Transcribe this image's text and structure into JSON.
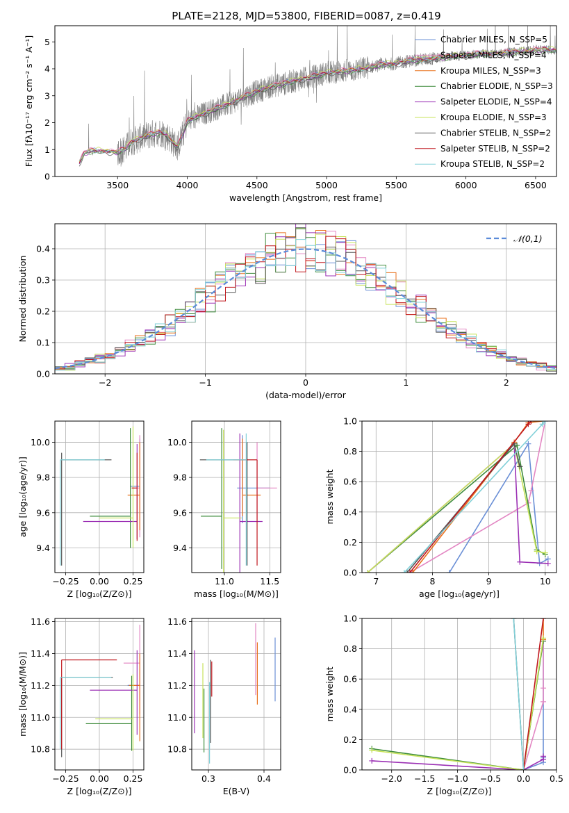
{
  "figure_title": "PLATE=2128, MJD=53800, FIBERID=0087, z=0.419",
  "colors": {
    "Chabrier MILES": "#6a8fd6",
    "Salpeter MILES": "#e387c3",
    "Kroupa MILES": "#e8721c",
    "Chabrier ELODIE": "#3f8c3c",
    "Salpeter ELODIE": "#9b30b4",
    "Kroupa ELODIE": "#c7e35a",
    "Chabrier STELIB": "#555555",
    "Salpeter STELIB": "#c0171d",
    "Kroupa STELIB": "#80d0d8",
    "normal_curve": "#5b8bd9",
    "grid": "#b0b0b0"
  },
  "chart_data": [
    {
      "id": "spectrum",
      "type": "line",
      "xlabel": "wavelength [Angstrom, rest frame]",
      "ylabel": "Flux [fλ10⁻¹⁷ erg cm⁻² s⁻¹ A⁻¹]",
      "xlim": [
        3050,
        6650
      ],
      "ylim": [
        0,
        5.6
      ],
      "xticks": [
        3500,
        4000,
        4500,
        5000,
        5500,
        6000,
        6500
      ],
      "yticks": [
        0,
        1,
        2,
        3,
        4,
        5
      ],
      "grid": false,
      "legend_loc": "upper-right",
      "data_range": [
        3225,
        6650
      ],
      "model_knots": {
        "x": [
          3225,
          3260,
          3300,
          3400,
          3500,
          3560,
          3600,
          3700,
          3800,
          3850,
          3930,
          3970,
          4000,
          4100,
          4200,
          4300,
          4400,
          4500,
          4600,
          4700,
          4800,
          4900,
          5000,
          5100,
          5200,
          5300,
          5400,
          5500,
          5600,
          5700,
          5800,
          5900,
          6000,
          6100,
          6200,
          6300,
          6400,
          6500,
          6650
        ],
        "y": [
          0.5,
          0.85,
          0.95,
          0.95,
          0.9,
          1.05,
          1.3,
          1.5,
          1.65,
          1.55,
          1.1,
          1.6,
          2.05,
          2.3,
          2.5,
          2.7,
          2.95,
          3.15,
          3.35,
          3.45,
          3.6,
          3.7,
          3.85,
          3.9,
          3.95,
          4.05,
          4.15,
          4.2,
          4.3,
          4.35,
          4.4,
          4.45,
          4.5,
          4.55,
          4.55,
          4.6,
          4.65,
          4.7,
          4.7
        ]
      },
      "series": [
        {
          "name": "Chabrier MILES, N_SSP=5",
          "library": "Chabrier MILES",
          "offset": 0.03
        },
        {
          "name": "Salpeter MILES, N_SSP=4",
          "library": "Salpeter MILES",
          "offset": 0.06
        },
        {
          "name": "Kroupa MILES, N_SSP=3",
          "library": "Kroupa MILES",
          "offset": 0.0
        },
        {
          "name": "Chabrier ELODIE, N_SSP=3",
          "library": "Chabrier ELODIE",
          "offset": -0.04
        },
        {
          "name": "Salpeter ELODIE, N_SSP=4",
          "library": "Salpeter ELODIE",
          "offset": -0.02
        },
        {
          "name": "Kroupa ELODIE, N_SSP=3",
          "library": "Kroupa ELODIE",
          "offset": 0.05
        },
        {
          "name": "Chabrier STELIB, N_SSP=2",
          "library": "Chabrier STELIB",
          "offset": -0.06
        },
        {
          "name": "Salpeter STELIB, N_SSP=2",
          "library": "Salpeter STELIB",
          "offset": 0.02
        },
        {
          "name": "Kroupa STELIB, N_SSP=2",
          "library": "Kroupa STELIB",
          "offset": -0.01
        }
      ]
    },
    {
      "id": "residuals",
      "type": "line",
      "xlabel": "(data-model)/error",
      "ylabel": "Normed distribution",
      "xlim": [
        -2.5,
        2.5
      ],
      "ylim": [
        0,
        0.48
      ],
      "xticks": [
        -2,
        -1,
        0,
        1,
        2
      ],
      "yticks": [
        0.0,
        0.1,
        0.2,
        0.3,
        0.4
      ],
      "grid": true,
      "legend_loc": "upper-right",
      "normal_label": "𝒩(0,1)",
      "bin_width": 0.1
    },
    {
      "id": "age_vs_Z",
      "type": "scatter",
      "xlabel": "Z [log₁₀(Z/Z⊙)]",
      "ylabel": "age [log₁₀(age/yr)]",
      "xlim": [
        -0.33,
        0.33
      ],
      "ylim": [
        9.26,
        10.12
      ],
      "xticks": [
        -0.25,
        0.0,
        0.25
      ],
      "yticks": [
        9.4,
        9.6,
        9.8,
        10.0
      ],
      "grid": true,
      "errorbars": [
        {
          "library": "Chabrier MILES",
          "x": 0.3,
          "xerr": [
            0.07,
            0.0
          ],
          "y": 9.75,
          "yerr": [
            0.2,
            0.27
          ]
        },
        {
          "library": "Salpeter MILES",
          "x": 0.3,
          "xerr": [
            0.06,
            0.0
          ],
          "y": 9.74,
          "yerr": [
            0.28,
            0.3
          ]
        },
        {
          "library": "Kroupa MILES",
          "x": 0.3,
          "xerr": [
            0.09,
            0.0
          ],
          "y": 9.7,
          "yerr": [
            0.2,
            0.3
          ]
        },
        {
          "library": "Chabrier ELODIE",
          "x": 0.23,
          "xerr": [
            0.3,
            0.0
          ],
          "y": 9.58,
          "yerr": [
            0.18,
            0.5
          ]
        },
        {
          "library": "Salpeter ELODIE",
          "x": 0.28,
          "xerr": [
            0.4,
            0.0
          ],
          "y": 9.55,
          "yerr": [
            0.1,
            0.44
          ]
        },
        {
          "library": "Kroupa ELODIE",
          "x": 0.25,
          "xerr": [
            0.25,
            0.0
          ],
          "y": 9.57,
          "yerr": [
            0.17,
            0.52
          ]
        },
        {
          "library": "Chabrier STELIB",
          "x": -0.28,
          "xerr": [
            0.0,
            0.37
          ],
          "y": 9.9,
          "yerr": [
            0.6,
            0.04
          ]
        },
        {
          "library": "Salpeter STELIB",
          "x": 0.28,
          "xerr": [
            0.04,
            0.0
          ],
          "y": 9.74,
          "yerr": [
            0.3,
            0.2
          ]
        },
        {
          "library": "Kroupa STELIB",
          "x": -0.29,
          "xerr": [
            0.0,
            0.33
          ],
          "y": 9.9,
          "yerr": [
            0.6,
            0.0
          ]
        }
      ]
    },
    {
      "id": "age_vs_mass",
      "type": "scatter",
      "xlabel": "mass [log₁₀(M/M⊙)]",
      "ylabel": "",
      "xlim": [
        10.64,
        11.62
      ],
      "ylim": [
        9.26,
        10.12
      ],
      "xticks": [
        11.0,
        11.5
      ],
      "yticks": [
        9.4,
        9.6,
        9.8,
        10.0
      ],
      "grid": true,
      "errorbars": [
        {
          "library": "Chabrier MILES",
          "x": 11.2,
          "xerr": [
            0.06,
            0.3
          ],
          "y": 9.74,
          "yerr": [
            0.2,
            0.3
          ]
        },
        {
          "library": "Salpeter MILES",
          "x": 11.36,
          "xerr": [
            0.0,
            0.22
          ],
          "y": 9.74,
          "yerr": [
            0.18,
            0.26
          ]
        },
        {
          "library": "Kroupa MILES",
          "x": 11.2,
          "xerr": [
            0.0,
            0.2
          ],
          "y": 9.7,
          "yerr": [
            0.12,
            0.32
          ]
        },
        {
          "library": "Chabrier ELODIE",
          "x": 10.97,
          "xerr": [
            0.23,
            0.0
          ],
          "y": 9.58,
          "yerr": [
            0.3,
            0.5
          ]
        },
        {
          "library": "Salpeter ELODIE",
          "x": 11.17,
          "xerr": [
            0.0,
            0.25
          ],
          "y": 9.55,
          "yerr": [
            0.4,
            0.5
          ]
        },
        {
          "library": "Kroupa ELODIE",
          "x": 10.99,
          "xerr": [
            0.0,
            0.2
          ],
          "y": 9.57,
          "yerr": [
            0.4,
            0.5
          ]
        },
        {
          "library": "Chabrier STELIB",
          "x": 11.25,
          "xerr": [
            0.52,
            0.0
          ],
          "y": 9.9,
          "yerr": [
            0.6,
            0.1
          ]
        },
        {
          "library": "Salpeter STELIB",
          "x": 11.36,
          "xerr": [
            0.26,
            0.0
          ],
          "y": 9.9,
          "yerr": [
            0.6,
            0.0
          ]
        },
        {
          "library": "Kroupa STELIB",
          "x": 11.24,
          "xerr": [
            0.44,
            0.0
          ],
          "y": 9.9,
          "yerr": [
            0.6,
            0.15
          ]
        }
      ]
    },
    {
      "id": "mass_weight_vs_age",
      "type": "line",
      "xlabel": "age  [log₁₀(age/yr)]",
      "ylabel": "mass weight",
      "xlim": [
        6.75,
        10.2
      ],
      "ylim": [
        0,
        1.0
      ],
      "xticks": [
        7,
        8,
        9,
        10
      ],
      "yticks": [
        0.0,
        0.2,
        0.4,
        0.6,
        0.8,
        1.0
      ],
      "grid": true,
      "series": [
        {
          "library": "Chabrier MILES",
          "x": [
            8.3,
            9.7,
            9.9,
            10.05
          ],
          "y": [
            0.0,
            0.85,
            0.06,
            0.09
          ]
        },
        {
          "library": "Salpeter MILES",
          "x": [
            7.6,
            9.7,
            9.75,
            10.0
          ],
          "y": [
            0.0,
            0.46,
            0.54,
            1.0
          ]
        },
        {
          "library": "Kroupa MILES",
          "x": [
            7.65,
            9.45,
            9.7,
            9.95
          ],
          "y": [
            0.0,
            0.86,
            0.99,
            1.0
          ]
        },
        {
          "library": "Chabrier ELODIE",
          "x": [
            6.85,
            9.5,
            9.85,
            10.0
          ],
          "y": [
            0.0,
            0.84,
            0.15,
            0.12
          ]
        },
        {
          "library": "Salpeter ELODIE",
          "x": [
            6.85,
            9.45,
            9.55,
            10.05
          ],
          "y": [
            0.0,
            0.85,
            0.07,
            0.06
          ]
        },
        {
          "library": "Kroupa ELODIE",
          "x": [
            6.85,
            9.45,
            9.85,
            10.0
          ],
          "y": [
            0.0,
            0.85,
            0.14,
            0.13
          ]
        },
        {
          "library": "Chabrier STELIB",
          "x": [
            7.55,
            9.45,
            9.55
          ],
          "y": [
            0.0,
            0.85,
            0.7
          ]
        },
        {
          "library": "Salpeter STELIB",
          "x": [
            7.6,
            9.7,
            9.75
          ],
          "y": [
            0.0,
            0.98,
            1.0
          ]
        },
        {
          "library": "Kroupa STELIB",
          "x": [
            7.5,
            9.95,
            10.0
          ],
          "y": [
            0.0,
            0.98,
            1.0
          ]
        }
      ]
    },
    {
      "id": "mass_vs_Z",
      "type": "scatter",
      "xlabel": "Z [log₁₀(Z/Z⊙)]",
      "ylabel": "mass [log₁₀(M/M⊙)]",
      "xlim": [
        -0.33,
        0.33
      ],
      "ylim": [
        10.67,
        11.62
      ],
      "xticks": [
        -0.25,
        0.0,
        0.25
      ],
      "yticks": [
        10.8,
        11.0,
        11.2,
        11.4,
        11.6
      ],
      "grid": true,
      "errorbars": [
        {
          "library": "Chabrier MILES",
          "x": 0.3,
          "xerr": [
            0.09,
            0.0
          ],
          "y": 11.2,
          "yerr": [
            0.1,
            0.1
          ]
        },
        {
          "library": "Salpeter MILES",
          "x": 0.3,
          "xerr": [
            0.12,
            0.0
          ],
          "y": 11.34,
          "yerr": [
            0.32,
            0.24
          ]
        },
        {
          "library": "Kroupa MILES",
          "x": 0.3,
          "xerr": [
            0.08,
            0.0
          ],
          "y": 11.2,
          "yerr": [
            0.35,
            0.2
          ]
        },
        {
          "library": "Chabrier ELODIE",
          "x": 0.24,
          "xerr": [
            0.34,
            0.0
          ],
          "y": 10.96,
          "yerr": [
            0.17,
            0.3
          ]
        },
        {
          "library": "Salpeter ELODIE",
          "x": 0.28,
          "xerr": [
            0.35,
            0.0
          ],
          "y": 11.17,
          "yerr": [
            0.28,
            0.25
          ]
        },
        {
          "library": "Kroupa ELODIE",
          "x": 0.25,
          "xerr": [
            0.28,
            0.0
          ],
          "y": 10.99,
          "yerr": [
            0.2,
            0.28
          ]
        },
        {
          "library": "Chabrier STELIB",
          "x": -0.28,
          "xerr": [
            0.0,
            0.38
          ],
          "y": 11.25,
          "yerr": [
            0.5,
            0.0
          ]
        },
        {
          "library": "Salpeter STELIB",
          "x": -0.28,
          "xerr": [
            0.0,
            0.41
          ],
          "y": 11.36,
          "yerr": [
            0.56,
            0.0
          ]
        },
        {
          "library": "Kroupa STELIB",
          "x": -0.29,
          "xerr": [
            0.0,
            0.38
          ],
          "y": 11.25,
          "yerr": [
            0.45,
            0.0
          ]
        }
      ]
    },
    {
      "id": "mass_vs_EBV",
      "type": "scatter",
      "xlabel": "E(B-V)",
      "ylabel": "",
      "xlim": [
        0.27,
        0.43
      ],
      "ylim": [
        10.67,
        11.62
      ],
      "xticks": [
        0.3,
        0.4
      ],
      "yticks": [
        10.8,
        11.0,
        11.2,
        11.4,
        11.6
      ],
      "grid": true,
      "errorbars": [
        {
          "library": "Chabrier MILES",
          "x": 0.42,
          "xerr": [
            0.0,
            0.0
          ],
          "y": 11.2,
          "yerr": [
            0.1,
            0.3
          ]
        },
        {
          "library": "Salpeter MILES",
          "x": 0.385,
          "xerr": [
            0.0,
            0.0
          ],
          "y": 11.34,
          "yerr": [
            0.2,
            0.25
          ]
        },
        {
          "library": "Kroupa MILES",
          "x": 0.388,
          "xerr": [
            0.0,
            0.0
          ],
          "y": 11.2,
          "yerr": [
            0.12,
            0.27
          ]
        },
        {
          "library": "Chabrier ELODIE",
          "x": 0.292,
          "xerr": [
            0.0,
            0.0
          ],
          "y": 10.96,
          "yerr": [
            0.18,
            0.22
          ]
        },
        {
          "library": "Salpeter ELODIE",
          "x": 0.275,
          "xerr": [
            0.0,
            0.0
          ],
          "y": 11.17,
          "yerr": [
            0.27,
            0.25
          ]
        },
        {
          "library": "Kroupa ELODIE",
          "x": 0.29,
          "xerr": [
            0.0,
            0.0
          ],
          "y": 10.99,
          "yerr": [
            0.12,
            0.35
          ]
        },
        {
          "library": "Chabrier STELIB",
          "x": 0.304,
          "xerr": [
            0.0,
            0.0
          ],
          "y": 11.04,
          "yerr": [
            0.2,
            0.32
          ]
        },
        {
          "library": "Salpeter STELIB",
          "x": 0.306,
          "xerr": [
            0.0,
            0.0
          ],
          "y": 11.2,
          "yerr": [
            0.07,
            0.15
          ]
        },
        {
          "library": "Kroupa STELIB",
          "x": 0.302,
          "xerr": [
            0.0,
            0.0
          ],
          "y": 11.04,
          "yerr": [
            0.33,
            0.18
          ]
        }
      ]
    },
    {
      "id": "mass_weight_vs_Z",
      "type": "line",
      "xlabel": "Z [log₁₀(Z/Z⊙)]",
      "ylabel": "mass weight",
      "xlim": [
        -2.45,
        0.5
      ],
      "ylim": [
        0,
        1.0
      ],
      "xticks": [
        -2.0,
        -1.5,
        -1.0,
        -0.5,
        0.0,
        0.5
      ],
      "yticks": [
        0.0,
        0.2,
        0.4,
        0.6,
        0.8,
        1.0
      ],
      "grid": true,
      "series": [
        {
          "library": "Chabrier MILES",
          "x": [
            0.0,
            0.3,
            0.3,
            0.3
          ],
          "y": [
            0.0,
            0.05,
            0.08,
            0.85
          ]
        },
        {
          "library": "Salpeter MILES",
          "x": [
            0.0,
            0.3,
            0.3,
            0.3
          ],
          "y": [
            0.0,
            0.45,
            0.54,
            0.85
          ]
        },
        {
          "library": "Kroupa MILES",
          "x": [
            0.0,
            0.3,
            0.3
          ],
          "y": [
            0.0,
            0.86,
            1.0
          ]
        },
        {
          "library": "Chabrier ELODIE",
          "x": [
            -2.3,
            0.0,
            0.3
          ],
          "y": [
            0.14,
            0.0,
            0.85
          ]
        },
        {
          "library": "Salpeter ELODIE",
          "x": [
            -2.3,
            0.0,
            0.3,
            0.3
          ],
          "y": [
            0.06,
            0.0,
            0.07,
            0.09
          ]
        },
        {
          "library": "Kroupa ELODIE",
          "x": [
            -2.3,
            0.0,
            0.3
          ],
          "y": [
            0.13,
            0.0,
            0.87
          ]
        },
        {
          "library": "Chabrier STELIB",
          "x": [
            -0.15,
            0.0
          ],
          "y": [
            1.0,
            0.0
          ]
        },
        {
          "library": "Salpeter STELIB",
          "x": [
            0.0,
            0.3
          ],
          "y": [
            0.0,
            1.0
          ]
        },
        {
          "library": "Kroupa STELIB",
          "x": [
            -0.15,
            0.0
          ],
          "y": [
            1.0,
            0.0
          ]
        }
      ]
    }
  ]
}
